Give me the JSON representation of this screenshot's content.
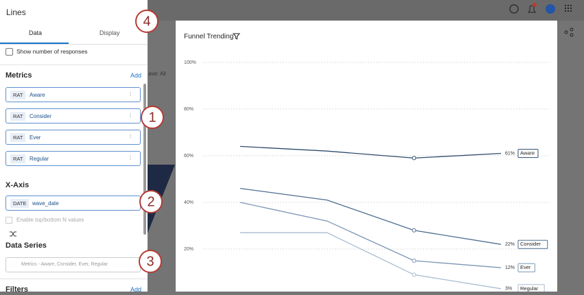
{
  "panel": {
    "title": "Lines",
    "tabs": [
      "Data",
      "Display"
    ],
    "checkbox": "Show number of responses",
    "metrics": {
      "heading": "Metrics",
      "action": "Add",
      "items": [
        {
          "tag": "RAT",
          "label": "Aware"
        },
        {
          "tag": "RAT",
          "label": "Consider"
        },
        {
          "tag": "RAT",
          "label": "Ever"
        },
        {
          "tag": "RAT",
          "label": "Regular"
        }
      ]
    },
    "x_axis": {
      "heading": "X-Axis",
      "tag": "DATE",
      "label": "wave_date",
      "option": "Enable top/bottom N values"
    },
    "data_series": {
      "heading": "Data Series",
      "placeholder": "Metrics - Aware, Consider, Ever, Regular"
    },
    "filters": {
      "heading": "Filters",
      "action": "Add"
    }
  },
  "background": {
    "filter_text": "ave: All"
  },
  "annotations": [
    "1",
    "2",
    "3",
    "4"
  ],
  "chart_data": {
    "type": "line",
    "title": "Funnel Trending",
    "categories": [
      null,
      null,
      null,
      null
    ],
    "ylim": [
      0,
      100
    ],
    "yticks": [
      {
        "value": 20,
        "label": "20%"
      },
      {
        "value": 40,
        "label": "40%"
      },
      {
        "value": 60,
        "label": "60%"
      },
      {
        "value": 80,
        "label": "80%"
      },
      {
        "value": 100,
        "label": "100%"
      }
    ],
    "grid": true,
    "series": [
      {
        "name": "Aware",
        "color": "#2d4b6c",
        "values": [
          64,
          62,
          59,
          61
        ],
        "value_labels": [
          null,
          null,
          null,
          "61%"
        ]
      },
      {
        "name": "Consider",
        "color": "#4d6d90",
        "values": [
          46,
          41,
          28,
          22
        ],
        "value_labels": [
          null,
          null,
          null,
          "22%"
        ]
      },
      {
        "name": "Ever",
        "color": "#7b95b3",
        "values": [
          40,
          32,
          15,
          12
        ],
        "value_labels": [
          null,
          null,
          null,
          "12%"
        ]
      },
      {
        "name": "Regular",
        "color": "#a8bbd0",
        "values": [
          27,
          27,
          9,
          3
        ],
        "value_labels": [
          null,
          null,
          null,
          "3%"
        ]
      }
    ]
  }
}
